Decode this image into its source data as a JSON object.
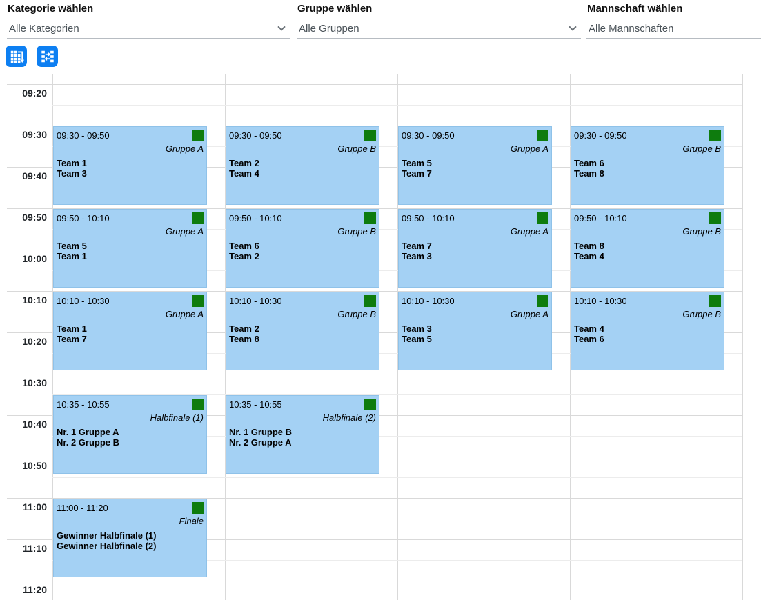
{
  "filters": [
    {
      "label": "Kategorie wählen",
      "value": "Alle Kategorien",
      "has_chevron": true
    },
    {
      "label": "Gruppe wählen",
      "value": "Alle Gruppen",
      "has_chevron": true
    },
    {
      "label": "Mannschaft wählen",
      "value": "Alle Mannschaften",
      "has_chevron": false
    }
  ],
  "toolbar": {
    "buttons": [
      {
        "name": "table-view-button",
        "icon": "table-arrow-icon"
      },
      {
        "name": "sequence-view-button",
        "icon": "swap-rows-icon"
      }
    ]
  },
  "schedule": {
    "time_labels": [
      "09:20",
      "09:30",
      "09:40",
      "09:50",
      "10:00",
      "10:10",
      "10:20",
      "10:30",
      "10:40",
      "10:50",
      "11:00",
      "11:10",
      "11:20"
    ],
    "events": [
      {
        "time": "09:30 - 09:50",
        "group": "Gruppe A",
        "teams": [
          "Team 1",
          "Team 3"
        ],
        "court": 1
      },
      {
        "time": "09:30 - 09:50",
        "group": "Gruppe B",
        "teams": [
          "Team 2",
          "Team 4"
        ],
        "court": 2
      },
      {
        "time": "09:30 - 09:50",
        "group": "Gruppe A",
        "teams": [
          "Team 5",
          "Team 7"
        ],
        "court": 3
      },
      {
        "time": "09:30 - 09:50",
        "group": "Gruppe B",
        "teams": [
          "Team 6",
          "Team 8"
        ],
        "court": 4
      },
      {
        "time": "09:50 - 10:10",
        "group": "Gruppe A",
        "teams": [
          "Team 5",
          "Team 1"
        ],
        "court": 1
      },
      {
        "time": "09:50 - 10:10",
        "group": "Gruppe B",
        "teams": [
          "Team 6",
          "Team 2"
        ],
        "court": 2
      },
      {
        "time": "09:50 - 10:10",
        "group": "Gruppe A",
        "teams": [
          "Team 7",
          "Team 3"
        ],
        "court": 3
      },
      {
        "time": "09:50 - 10:10",
        "group": "Gruppe B",
        "teams": [
          "Team 8",
          "Team 4"
        ],
        "court": 4
      },
      {
        "time": "10:10 - 10:30",
        "group": "Gruppe A",
        "teams": [
          "Team 1",
          "Team 7"
        ],
        "court": 1
      },
      {
        "time": "10:10 - 10:30",
        "group": "Gruppe B",
        "teams": [
          "Team 2",
          "Team 8"
        ],
        "court": 2
      },
      {
        "time": "10:10 - 10:30",
        "group": "Gruppe A",
        "teams": [
          "Team 3",
          "Team 5"
        ],
        "court": 3
      },
      {
        "time": "10:10 - 10:30",
        "group": "Gruppe B",
        "teams": [
          "Team 4",
          "Team 6"
        ],
        "court": 4
      },
      {
        "time": "10:35 - 10:55",
        "group": "Halbfinale (1)",
        "teams": [
          "Nr. 1 Gruppe A",
          "Nr. 2 Gruppe B"
        ],
        "court": 1
      },
      {
        "time": "10:35 - 10:55",
        "group": "Halbfinale (2)",
        "teams": [
          "Nr. 1 Gruppe B",
          "Nr. 2 Gruppe A"
        ],
        "court": 2
      },
      {
        "time": "11:00 - 11:20",
        "group": "Finale",
        "teams": [
          "Gewinner Halbfinale (1)",
          "Gewinner Halbfinale (2)"
        ],
        "court": 1
      }
    ]
  },
  "colors": {
    "accent_blue": "#0d7ff2",
    "event_fill": "#a4d1f4",
    "event_border": "#8fc2e9",
    "marker_green": "#0e7c0e",
    "grid_major": "#d9d9d9",
    "grid_minor": "#ececec"
  }
}
